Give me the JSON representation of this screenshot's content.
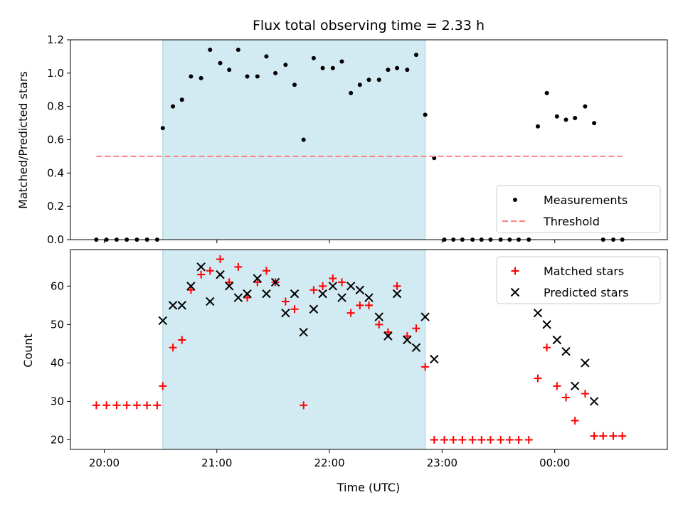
{
  "chart_data": [
    {
      "type": "scatter",
      "title": "Flux total observing time = 2.33 h",
      "ylabel": "Matched/Predicted stars",
      "xlabel": "",
      "ylim": [
        0,
        1.2
      ],
      "yticks": [
        0,
        0.2,
        0.4,
        0.6,
        0.8,
        1.0,
        1.2
      ],
      "ytick_labels": [
        "0.0",
        "0.2",
        "0.4",
        "0.6",
        "0.8",
        "1.0",
        "1.2"
      ],
      "xlim_hours": [
        19.7,
        25.0
      ],
      "shaded_band_hours": [
        20.52,
        22.85
      ],
      "shaded_color": "#add8e6",
      "legend_position": "lower-right",
      "series": [
        {
          "name": "Measurements",
          "marker": "dot",
          "color": "#000000",
          "x_hours": [
            19.93,
            20.02,
            20.11,
            20.2,
            20.29,
            20.38,
            20.47,
            20.52,
            20.61,
            20.69,
            20.77,
            20.86,
            20.94,
            21.03,
            21.11,
            21.19,
            21.27,
            21.36,
            21.44,
            21.52,
            21.61,
            21.69,
            21.77,
            21.86,
            21.94,
            22.03,
            22.11,
            22.19,
            22.27,
            22.35,
            22.44,
            22.52,
            22.6,
            22.69,
            22.77,
            22.85,
            22.93,
            23.02,
            23.1,
            23.18,
            23.27,
            23.35,
            23.43,
            23.52,
            23.6,
            23.68,
            23.77,
            23.85,
            23.93,
            24.02,
            24.1,
            24.18,
            24.27,
            24.35,
            24.43,
            24.52,
            24.6
          ],
          "y": [
            0,
            0,
            0,
            0,
            0,
            0,
            0,
            0.67,
            0.8,
            0.84,
            0.98,
            0.97,
            1.14,
            1.06,
            1.02,
            1.14,
            0.98,
            0.98,
            1.1,
            1.0,
            1.05,
            0.93,
            0.6,
            1.09,
            1.03,
            1.03,
            1.07,
            0.88,
            0.93,
            0.96,
            0.96,
            1.02,
            1.03,
            1.02,
            1.11,
            0.75,
            0.49,
            0,
            0,
            0,
            0,
            0,
            0,
            0,
            0,
            0,
            0,
            0.68,
            0.88,
            0.74,
            0.72,
            0.73,
            0.8,
            0.7,
            0,
            0,
            0
          ]
        },
        {
          "name": "Threshold",
          "marker": "dashed-line",
          "color": "#ff7f7f",
          "x_hours": [
            19.93,
            24.6
          ],
          "y": [
            0.5,
            0.5
          ]
        }
      ]
    },
    {
      "type": "scatter",
      "title": "",
      "ylabel": "Count",
      "xlabel": "Time (UTC)",
      "ylim": [
        17.5,
        69.5
      ],
      "yticks": [
        20,
        30,
        40,
        50,
        60
      ],
      "ytick_labels": [
        "20",
        "30",
        "40",
        "50",
        "60"
      ],
      "xlim_hours": [
        19.7,
        25.0
      ],
      "xticks_hours": [
        20,
        21,
        22,
        23,
        24
      ],
      "xtick_labels": [
        "20:00",
        "21:00",
        "22:00",
        "23:00",
        "00:00"
      ],
      "shaded_band_hours": [
        20.52,
        22.85
      ],
      "shaded_color": "#add8e6",
      "legend_position": "top-right",
      "series": [
        {
          "name": "Matched stars",
          "marker": "plus",
          "color": "#ff0000",
          "x_hours": [
            19.93,
            20.02,
            20.11,
            20.2,
            20.29,
            20.38,
            20.47,
            20.52,
            20.61,
            20.69,
            20.77,
            20.86,
            20.94,
            21.03,
            21.11,
            21.19,
            21.27,
            21.36,
            21.44,
            21.52,
            21.61,
            21.69,
            21.77,
            21.86,
            21.94,
            22.03,
            22.11,
            22.19,
            22.27,
            22.35,
            22.44,
            22.52,
            22.6,
            22.69,
            22.77,
            22.85,
            22.93,
            23.02,
            23.1,
            23.18,
            23.27,
            23.35,
            23.43,
            23.52,
            23.6,
            23.68,
            23.77,
            23.85,
            23.93,
            24.02,
            24.1,
            24.18,
            24.27,
            24.35,
            24.43,
            24.52,
            24.6
          ],
          "y": [
            29,
            29,
            29,
            29,
            29,
            29,
            29,
            34,
            44,
            46,
            59,
            63,
            64,
            67,
            61,
            65,
            57,
            61,
            64,
            61,
            56,
            54,
            29,
            59,
            60,
            62,
            61,
            53,
            55,
            55,
            50,
            48,
            60,
            47,
            49,
            39,
            20,
            20,
            20,
            20,
            20,
            20,
            20,
            20,
            20,
            20,
            20,
            36,
            44,
            34,
            31,
            25,
            32,
            21,
            21,
            21,
            21
          ]
        },
        {
          "name": "Predicted stars",
          "marker": "x",
          "color": "#000000",
          "x_hours": [
            20.52,
            20.61,
            20.69,
            20.77,
            20.86,
            20.94,
            21.03,
            21.11,
            21.19,
            21.27,
            21.36,
            21.44,
            21.52,
            21.61,
            21.69,
            21.77,
            21.86,
            21.94,
            22.03,
            22.11,
            22.19,
            22.27,
            22.35,
            22.44,
            22.52,
            22.6,
            22.69,
            22.77,
            22.85,
            22.93,
            23.85,
            23.93,
            24.02,
            24.1,
            24.18,
            24.27,
            24.35
          ],
          "y": [
            51,
            55,
            55,
            60,
            65,
            56,
            63,
            60,
            57,
            58,
            62,
            58,
            61,
            53,
            58,
            48,
            54,
            58,
            60,
            57,
            60,
            59,
            57,
            52,
            47,
            58,
            46,
            44,
            52,
            41,
            53,
            50,
            46,
            43,
            34,
            40,
            30
          ]
        }
      ]
    }
  ]
}
